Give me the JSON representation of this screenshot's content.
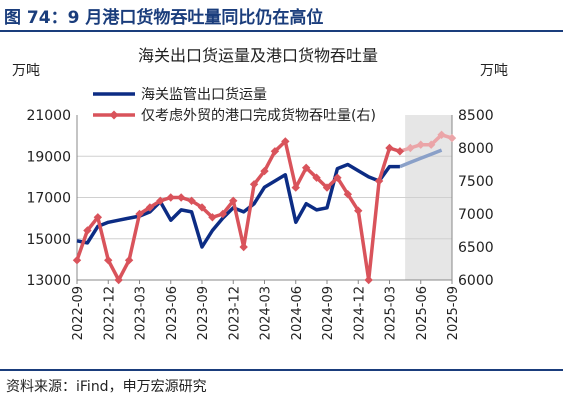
{
  "figure": {
    "title": "图 74：9 月港口货物吞吐量同比仍在高位",
    "source": "资料来源：iFind，申万宏源研究"
  },
  "chart_data": {
    "type": "line",
    "title": "海关出口货运量及港口货物吞吐量",
    "left_unit": "万吨",
    "right_unit": "万吨",
    "categories": [
      "2022-09",
      "2022-10",
      "2022-11",
      "2022-12",
      "2023-01",
      "2023-02",
      "2023-03",
      "2023-04",
      "2023-05",
      "2023-06",
      "2023-07",
      "2023-08",
      "2023-09",
      "2023-10",
      "2023-11",
      "2023-12",
      "2024-01",
      "2024-02",
      "2024-03",
      "2024-04",
      "2024-05",
      "2024-06",
      "2024-07",
      "2024-08",
      "2024-09",
      "2024-10",
      "2024-11",
      "2024-12",
      "2025-01",
      "2025-02",
      "2025-03",
      "2025-04",
      "2025-05",
      "2025-06",
      "2025-07",
      "2025-08",
      "2025-09"
    ],
    "tick_labels": [
      "2022-09",
      "2022-12",
      "2023-03",
      "2023-06",
      "2023-09",
      "2023-12",
      "2024-03",
      "2024-06",
      "2024-09",
      "2024-12",
      "2025-03",
      "2025-06",
      "2025-09"
    ],
    "y_left": {
      "ticks": [
        "13000",
        "15000",
        "17000",
        "19000",
        "21000"
      ],
      "range": [
        13000,
        21000
      ]
    },
    "y_right": {
      "ticks": [
        "6000",
        "6500",
        "7000",
        "7500",
        "8000",
        "8500"
      ],
      "range": [
        6000,
        8500
      ]
    },
    "shaded_region": {
      "from": "2025-05",
      "to": "2025-09"
    },
    "series": [
      {
        "name": "海关监管出口货运量",
        "axis": "left",
        "color": "#0c2c84",
        "projection_color": "#8aa0c8",
        "values": [
          14900,
          14800,
          15600,
          15800,
          15900,
          16000,
          16100,
          16300,
          16800,
          15900,
          16400,
          16300,
          14600,
          15400,
          16000,
          16500,
          16300,
          16700,
          17500,
          17800,
          18100,
          15800,
          16700,
          16400,
          16500,
          18400,
          18600,
          18300,
          18000,
          17800,
          18500,
          18500,
          null,
          null,
          null,
          null,
          null
        ],
        "projection": [
          null,
          null,
          null,
          null,
          null,
          null,
          null,
          null,
          null,
          null,
          null,
          null,
          null,
          null,
          null,
          null,
          null,
          null,
          null,
          null,
          null,
          null,
          null,
          null,
          null,
          null,
          null,
          null,
          null,
          null,
          null,
          18500,
          18700,
          18900,
          19100,
          19300,
          null
        ]
      },
      {
        "name": "仅考虑外贸的港口完成货物吞吐量(右)",
        "axis": "right",
        "color": "#d9535b",
        "projection_color": "#eba5a8",
        "values": [
          6300,
          6750,
          6950,
          6300,
          6000,
          6300,
          7000,
          7100,
          7200,
          7250,
          7250,
          7200,
          7100,
          6950,
          7000,
          7200,
          6500,
          7450,
          7650,
          7950,
          8100,
          7400,
          7700,
          7550,
          7400,
          7550,
          7300,
          7050,
          6000,
          7500,
          8000,
          7950,
          null,
          null,
          null,
          null,
          null
        ],
        "projection": [
          null,
          null,
          null,
          null,
          null,
          null,
          null,
          null,
          null,
          null,
          null,
          null,
          null,
          null,
          null,
          null,
          null,
          null,
          null,
          null,
          null,
          null,
          null,
          null,
          null,
          null,
          null,
          null,
          null,
          null,
          null,
          7950,
          8000,
          8050,
          8050,
          8200,
          8150
        ]
      }
    ]
  }
}
